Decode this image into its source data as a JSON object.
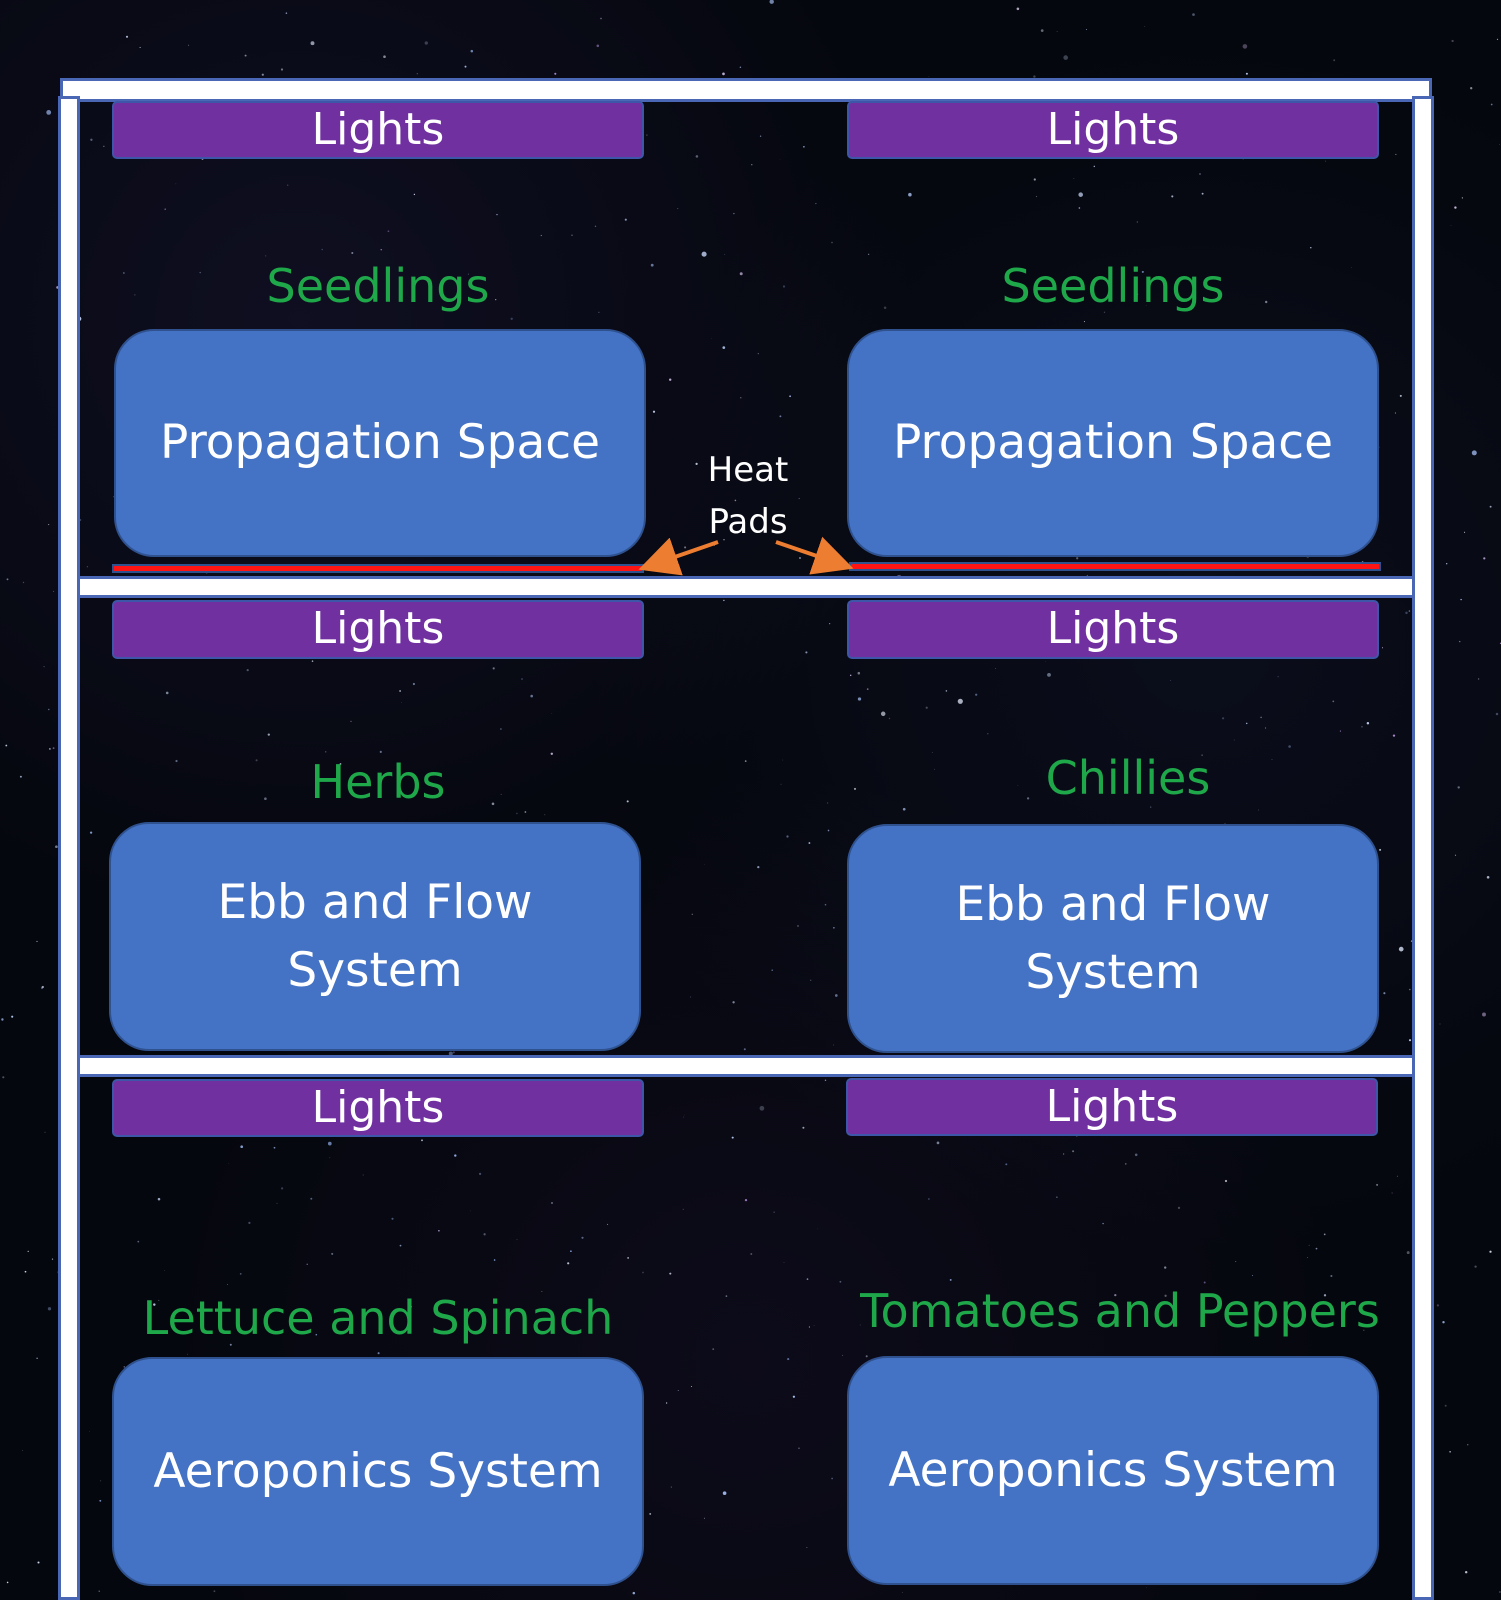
{
  "diagram": {
    "light_label": "Lights",
    "heat_pad_label": {
      "line1": "Heat",
      "line2": "Pads"
    },
    "shelves": [
      {
        "left": {
          "crop": "Seedlings",
          "system": "Propagation Space"
        },
        "right": {
          "crop": "Seedlings",
          "system": "Propagation Space"
        }
      },
      {
        "left": {
          "crop": "Herbs",
          "system": "Ebb and Flow System"
        },
        "right": {
          "crop": "Chillies",
          "system": "Ebb and Flow System"
        }
      },
      {
        "left": {
          "crop": "Lettuce and Spinach",
          "system": "Aeroponics System"
        },
        "right": {
          "crop": "Tomatoes and Peppers",
          "system": "Aeroponics System"
        }
      }
    ]
  },
  "colors": {
    "background": "#05070e",
    "rack": "#ffffff",
    "rack_outline": "#4a67b5",
    "light_bar": "#7030a0",
    "system_box": "#4472c4",
    "crop_text": "#1fa84a",
    "heat_pad": "#ff1414",
    "heat_arrow": "#ed7d31"
  }
}
